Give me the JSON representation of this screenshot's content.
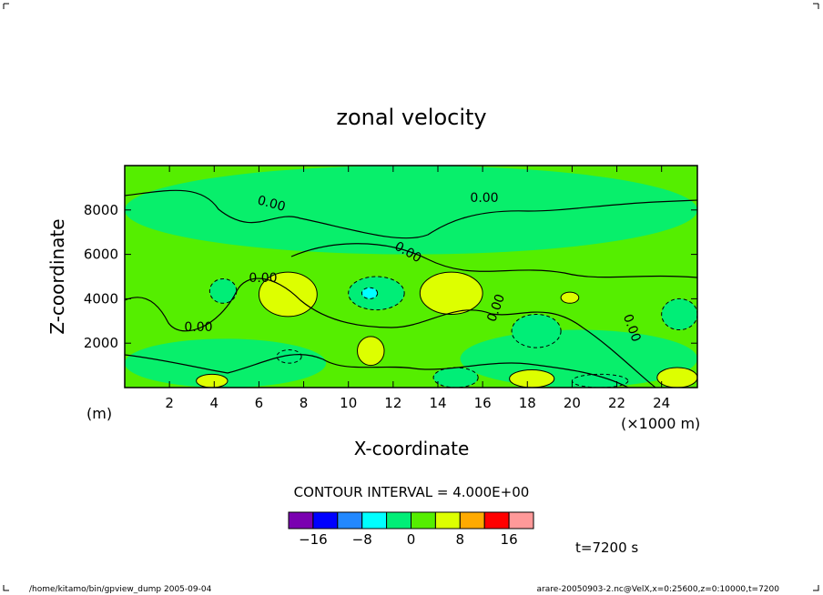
{
  "chart_data": {
    "type": "heatmap",
    "title": "zonal velocity",
    "xlabel": "X-coordinate",
    "ylabel": "Z-coordinate",
    "xunit": "(×1000 m)",
    "yunit": "(m)",
    "xlim": [
      0,
      25.6
    ],
    "ylim": [
      0,
      10000
    ],
    "xticks": [
      "2",
      "4",
      "6",
      "8",
      "10",
      "12",
      "14",
      "16",
      "18",
      "20",
      "22",
      "24"
    ],
    "xtick_values": [
      2,
      4,
      6,
      8,
      10,
      12,
      14,
      16,
      18,
      20,
      22,
      24
    ],
    "yticks": [
      "2000",
      "4000",
      "6000",
      "8000"
    ],
    "ytick_values": [
      2000,
      4000,
      6000,
      8000
    ],
    "contour_interval_text": "CONTOUR INTERVAL = 4.000E+00",
    "contour_labels": [
      "0.00",
      "0.00",
      "0.00",
      "0.00",
      "0.00",
      "0.00",
      "0.00"
    ],
    "colorbar": {
      "colors": [
        "#7a00b0",
        "#0000ff",
        "#2288ff",
        "#00ffff",
        "#00ee77",
        "#55ee00",
        "#ddff00",
        "#ffaa00",
        "#ff0000",
        "#ff9999"
      ],
      "tick_labels": [
        "−16",
        "−8",
        "0",
        "8",
        "16"
      ],
      "tick_values": [
        -16,
        -8,
        0,
        8,
        16
      ],
      "range": [
        -20,
        20
      ]
    },
    "regions": [
      {
        "level": 0,
        "x": [
          0.0,
          25.6
        ],
        "z": [
          0,
          10000
        ]
      },
      {
        "level": -4,
        "x": [
          3.8,
          5.0
        ],
        "z": [
          3800,
          4900
        ]
      },
      {
        "level": 4,
        "x": [
          6.0,
          8.6
        ],
        "z": [
          3200,
          5200
        ]
      },
      {
        "level": -4,
        "x": [
          10.0,
          12.5
        ],
        "z": [
          3500,
          5000
        ]
      },
      {
        "level": -8,
        "x": [
          10.6,
          11.3
        ],
        "z": [
          4000,
          4500
        ]
      },
      {
        "level": 4,
        "x": [
          13.2,
          16.0
        ],
        "z": [
          3300,
          5200
        ]
      },
      {
        "level": -4,
        "x": [
          17.3,
          19.5
        ],
        "z": [
          1800,
          3300
        ]
      },
      {
        "level": -4,
        "x": [
          24.0,
          25.6
        ],
        "z": [
          2600,
          4000
        ]
      },
      {
        "level": 4,
        "x": [
          10.4,
          11.6
        ],
        "z": [
          1000,
          2300
        ]
      },
      {
        "level": -4,
        "x": [
          6.8,
          7.9
        ],
        "z": [
          1100,
          1700
        ]
      },
      {
        "level": 4,
        "x": [
          3.2,
          4.6
        ],
        "z": [
          0,
          600
        ]
      },
      {
        "level": -4,
        "x": [
          13.8,
          15.8
        ],
        "z": [
          0,
          900
        ]
      },
      {
        "level": 4,
        "x": [
          17.2,
          19.2
        ],
        "z": [
          0,
          800
        ]
      },
      {
        "level": -4,
        "x": [
          20.0,
          22.5
        ],
        "z": [
          0,
          600
        ]
      },
      {
        "level": 4,
        "x": [
          23.8,
          25.6
        ],
        "z": [
          0,
          900
        ]
      },
      {
        "level": 4,
        "x": [
          19.5,
          20.3
        ],
        "z": [
          3800,
          4300
        ]
      }
    ]
  },
  "annotations": {
    "time": "t=7200 s",
    "footer_left": "/home/kitamo/bin/gpview_dump  2005-09-04",
    "footer_right": "arare-20050903-2.nc@VelX,x=0:25600,z=0:10000,t=7200"
  }
}
